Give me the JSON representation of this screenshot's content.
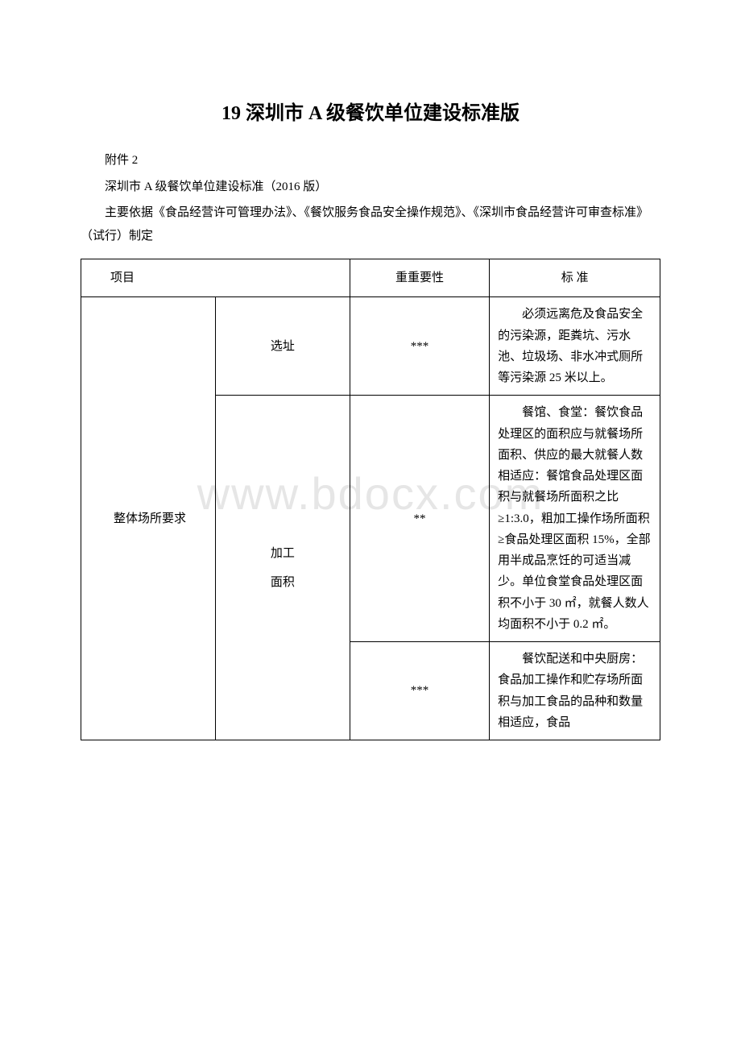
{
  "title": "19 深圳市 A 级餐饮单位建设标准版",
  "attachment": "附件 2",
  "subtitle": "深圳市 A 级餐饮单位建设标准（2016 版）",
  "basis": "主要依据《食品经营许可管理办法》、《餐饮服务食品安全操作规范》、《深圳市食品经营许可审查标准》（试行）制定",
  "watermark": "www.bdocx.com",
  "headers": {
    "project": "项目",
    "importance": "重重要性",
    "standard": "标 准"
  },
  "rows": {
    "category": "整体场所要求",
    "r1": {
      "sub": "选址",
      "imp": "***",
      "std": "必须远离危及食品安全的污染源，距粪坑、污水池、垃圾场、非水冲式厕所等污染源 25 米以上。"
    },
    "r2": {
      "sub_line1": "加工",
      "sub_line2": "面积",
      "imp": "**",
      "std": "餐馆、食堂：餐饮食品处理区的面积应与就餐场所面积、供应的最大就餐人数相适应：餐馆食品处理区面积与就餐场所面积之比≥1:3.0，粗加工操作场所面积≥食品处理区面积 15%，全部用半成品烹饪的可适当减少。单位食堂食品处理区面积不小于 30 ㎡，就餐人数人均面积不小于 0.2 ㎡。"
    },
    "r3": {
      "imp": "***",
      "std": "餐饮配送和中央厨房：食品加工操作和贮存场所面积与加工食品的品种和数量相适应，食品"
    }
  }
}
